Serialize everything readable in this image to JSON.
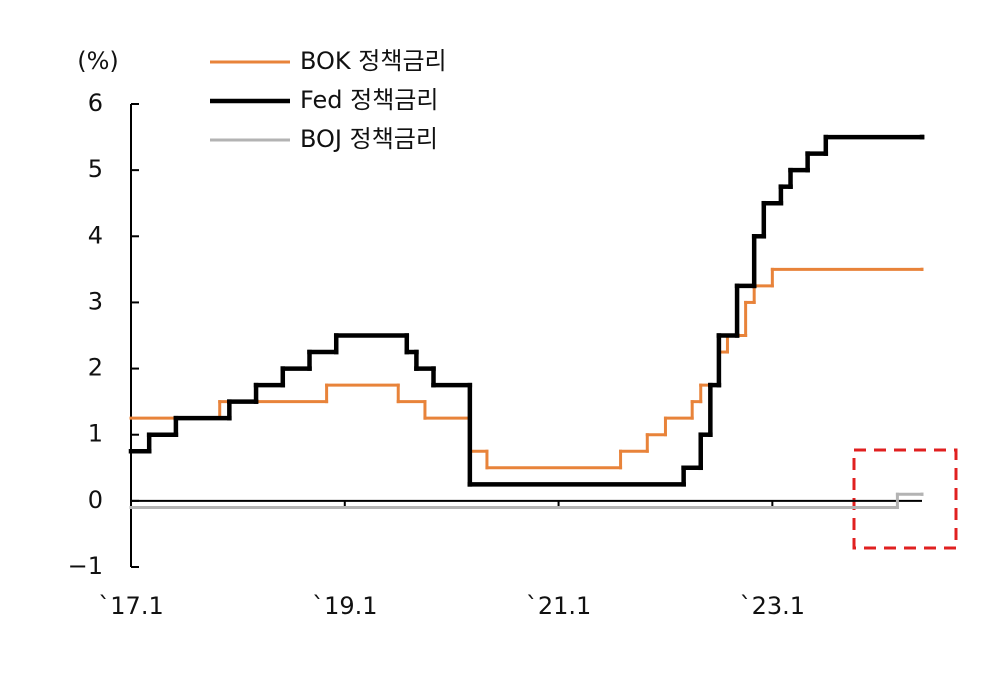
{
  "chart_data": {
    "type": "line",
    "drawstyle": "steps-post",
    "y_label": "(%)",
    "legend": "upper left",
    "grid": false,
    "xlim": [
      2017,
      2024.4
    ],
    "ylim": [
      -1,
      6
    ],
    "xticks": [
      {
        "value": 2017,
        "label": "`17.1"
      },
      {
        "value": 2019,
        "label": "`19.1"
      },
      {
        "value": 2021,
        "label": "`21.1"
      },
      {
        "value": 2023,
        "label": "`23.1"
      }
    ],
    "yticks": [
      {
        "value": -1,
        "label": "−1"
      },
      0,
      1,
      2,
      3,
      4,
      5,
      6
    ],
    "series": [
      {
        "name": "BOK 정책금리",
        "color": "#e8833a",
        "width": 3,
        "x": [
          2017,
          2017.83,
          2018.83,
          2019.5,
          2019.75,
          2020.17,
          2020.33,
          2021.58,
          2021.83,
          2022,
          2022.25,
          2022.33,
          2022.5,
          2022.58,
          2022.75,
          2022.83,
          2023,
          2024.4
        ],
        "values": [
          1.25,
          1.5,
          1.75,
          1.5,
          1.25,
          0.75,
          0.5,
          0.75,
          1.0,
          1.25,
          1.5,
          1.75,
          2.25,
          2.5,
          3.0,
          3.25,
          3.5,
          3.5
        ]
      },
      {
        "name": "Fed 정책금리",
        "color": "#000000",
        "width": 4.5,
        "x": [
          2017,
          2017.17,
          2017.42,
          2017.92,
          2018.17,
          2018.42,
          2018.67,
          2018.92,
          2019.58,
          2019.67,
          2019.83,
          2020.17,
          2022.17,
          2022.33,
          2022.42,
          2022.5,
          2022.67,
          2022.83,
          2022.92,
          2023.08,
          2023.17,
          2023.33,
          2023.5,
          2024.4
        ],
        "values": [
          0.75,
          1.0,
          1.25,
          1.5,
          1.75,
          2.0,
          2.25,
          2.5,
          2.25,
          2.0,
          1.75,
          0.25,
          0.5,
          1.0,
          1.75,
          2.5,
          3.25,
          4.0,
          4.5,
          4.75,
          5.0,
          5.25,
          5.5,
          5.5
        ]
      },
      {
        "name": "BOJ 정책금리",
        "color": "#b3b3b3",
        "width": 3,
        "x": [
          2017,
          2024.17,
          2024.4
        ],
        "values": [
          -0.1,
          0.1,
          0.1
        ]
      }
    ]
  }
}
